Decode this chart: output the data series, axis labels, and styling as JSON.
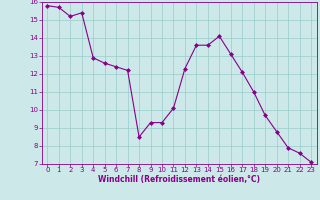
{
  "x": [
    0,
    1,
    2,
    3,
    4,
    5,
    6,
    7,
    8,
    9,
    10,
    11,
    12,
    13,
    14,
    15,
    16,
    17,
    18,
    19,
    20,
    21,
    22,
    23
  ],
  "y": [
    15.8,
    15.7,
    15.2,
    15.4,
    12.9,
    12.6,
    12.4,
    12.2,
    8.5,
    9.3,
    9.3,
    10.1,
    12.3,
    13.6,
    13.6,
    14.1,
    13.1,
    12.1,
    11.0,
    9.7,
    8.8,
    7.9,
    7.6,
    7.1
  ],
  "line_color": "#880088",
  "marker": "D",
  "marker_size": 2.0,
  "xlabel": "Windchill (Refroidissement éolien,°C)",
  "xlim": [
    -0.5,
    23.5
  ],
  "ylim": [
    7,
    16
  ],
  "yticks": [
    7,
    8,
    9,
    10,
    11,
    12,
    13,
    14,
    15,
    16
  ],
  "xticks": [
    0,
    1,
    2,
    3,
    4,
    5,
    6,
    7,
    8,
    9,
    10,
    11,
    12,
    13,
    14,
    15,
    16,
    17,
    18,
    19,
    20,
    21,
    22,
    23
  ],
  "background_color": "#cce8e8",
  "grid_color": "#99cccc",
  "tick_label_color": "#880088",
  "xlabel_color": "#880088",
  "tick_fontsize": 5.0,
  "xlabel_fontsize": 5.5,
  "linewidth": 0.8
}
